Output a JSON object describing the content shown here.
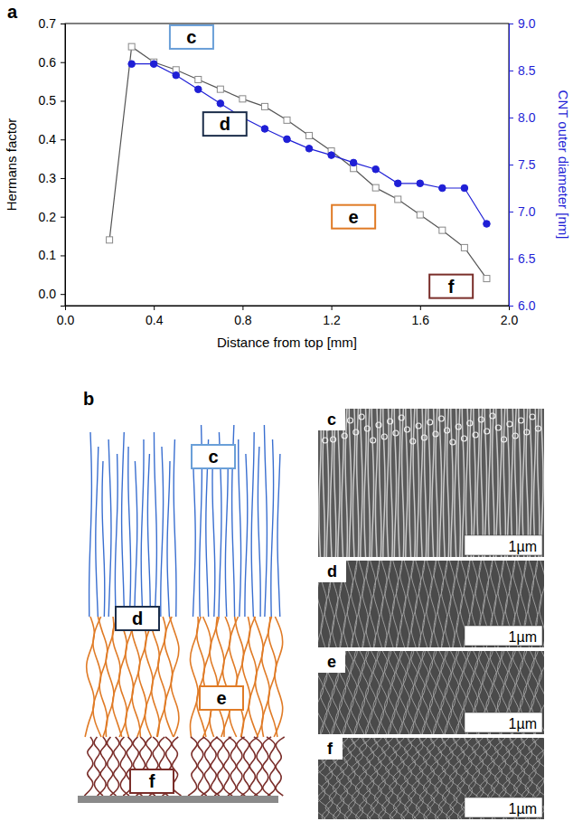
{
  "chart_data": {
    "type": "line",
    "panel_label": "a",
    "x_label": "Distance from top [mm]",
    "y_label": "Hermans factor",
    "y2_label": "CNT outer diameter [nm]",
    "x": [
      0.2,
      0.3,
      0.4,
      0.5,
      0.6,
      0.7,
      0.8,
      0.9,
      1.0,
      1.1,
      1.2,
      1.3,
      1.4,
      1.5,
      1.6,
      1.7,
      1.8,
      1.9
    ],
    "series": [
      {
        "name": "Hermans factor",
        "color": "#555555",
        "marker": "square",
        "values": [
          0.14,
          0.64,
          0.6,
          0.58,
          0.555,
          0.53,
          0.505,
          0.485,
          0.45,
          0.41,
          0.37,
          0.325,
          0.275,
          0.245,
          0.205,
          0.165,
          0.12,
          0.04
        ]
      },
      {
        "name": "CNT outer diameter",
        "color": "#1f1fd6",
        "marker": "circle",
        "axis": "y2",
        "values": [
          null,
          8.57,
          8.57,
          8.45,
          8.3,
          8.15,
          8.0,
          7.88,
          7.77,
          7.67,
          7.6,
          7.52,
          7.45,
          7.3,
          7.3,
          7.25,
          7.25,
          6.87
        ]
      }
    ],
    "xlim": [
      0,
      2.0
    ],
    "xticks": [
      {
        "value": 0,
        "label": "0.0"
      },
      0.4,
      0.8,
      1.2,
      1.6,
      {
        "value": 2,
        "label": "2.0"
      }
    ],
    "ylim": [
      -0.03,
      0.7
    ],
    "yticks": [
      {
        "value": 0,
        "label": "0.0"
      },
      0.1,
      0.2,
      0.3,
      0.4,
      0.5,
      0.6,
      0.7
    ],
    "y2lim": [
      6.0,
      9.0
    ],
    "y2ticks": [
      {
        "value": 6,
        "label": "6.0"
      },
      6.5,
      {
        "value": 7,
        "label": "7.0"
      },
      7.5,
      {
        "value": 8,
        "label": "8.0"
      },
      8.5,
      {
        "value": 9,
        "label": "9.0"
      }
    ],
    "annotations": [
      {
        "text": "c",
        "x": 0.57,
        "y": 0.665
      },
      {
        "text": "d",
        "x": 0.72,
        "y": 0.44
      },
      {
        "text": "e",
        "x": 1.3,
        "y": 0.2
      },
      {
        "text": "f",
        "x": 1.74,
        "y": 0.02
      }
    ]
  },
  "diagram": {
    "panel_label": "b",
    "regions": [
      "c",
      "d",
      "e",
      "f"
    ]
  },
  "images": [
    {
      "label": "c",
      "scale_bar": "1µm"
    },
    {
      "label": "d",
      "scale_bar": "1µm"
    },
    {
      "label": "e",
      "scale_bar": "1µm"
    },
    {
      "label": "f",
      "scale_bar": "1µm"
    }
  ]
}
